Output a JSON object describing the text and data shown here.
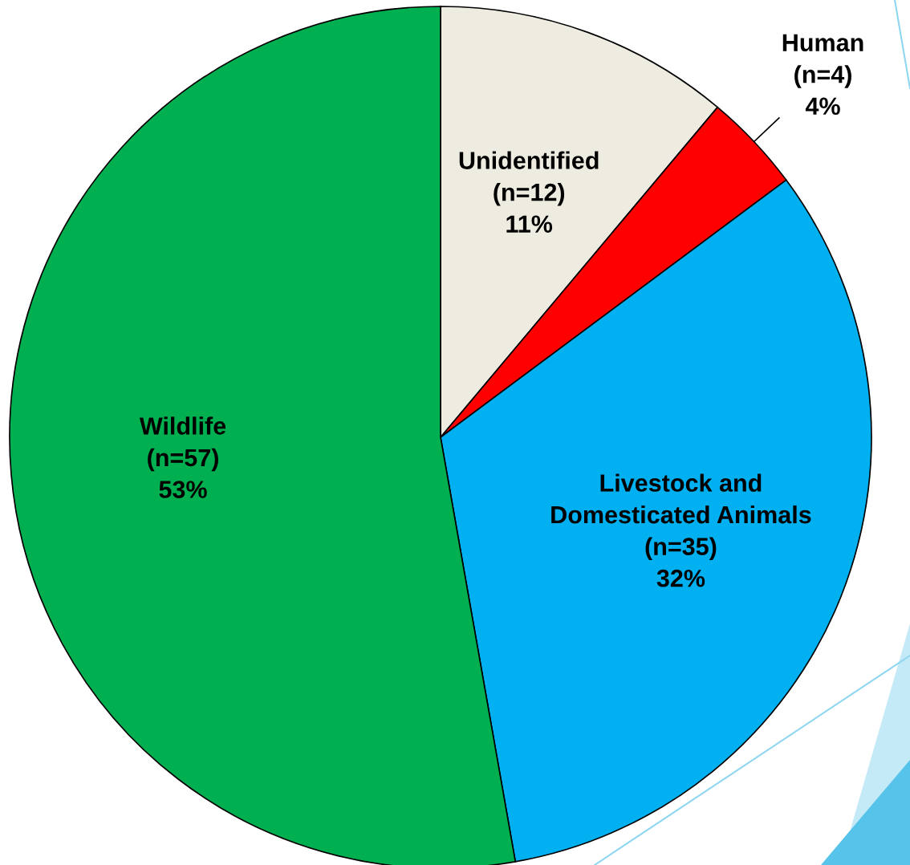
{
  "chart_data": {
    "type": "pie",
    "categories": [
      "Unidentified",
      "Human",
      "Livestock and Domesticated Animals",
      "Wildlife"
    ],
    "values": [
      12,
      4,
      35,
      57
    ],
    "colors": [
      "#eeece1",
      "#ff0000",
      "#00b0f0",
      "#00b050"
    ],
    "value_labels": [
      "(n=12)\n11%",
      "(n=4)\n4%",
      "(n=35)\n32%",
      "(n=57)\n53%"
    ]
  }
}
